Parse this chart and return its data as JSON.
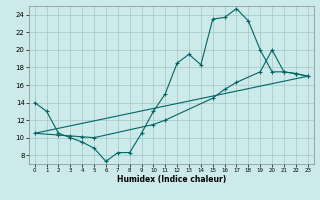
{
  "xlabel": "Humidex (Indice chaleur)",
  "bg_color": "#cceaea",
  "grid_color": "#aacccc",
  "line_color": "#006666",
  "xlim": [
    -0.5,
    23.5
  ],
  "ylim": [
    7,
    25
  ],
  "xticks": [
    0,
    1,
    2,
    3,
    4,
    5,
    6,
    7,
    8,
    9,
    10,
    11,
    12,
    13,
    14,
    15,
    16,
    17,
    18,
    19,
    20,
    21,
    22,
    23
  ],
  "yticks": [
    8,
    10,
    12,
    14,
    16,
    18,
    20,
    22,
    24
  ],
  "line1_x": [
    0,
    1,
    2,
    3,
    4,
    5,
    6,
    7,
    8,
    9,
    10,
    11,
    12,
    13,
    14,
    15,
    16,
    17,
    18,
    19,
    20,
    21,
    22,
    23
  ],
  "line1_y": [
    14.0,
    13.0,
    10.5,
    10.0,
    9.5,
    8.8,
    7.3,
    8.3,
    8.3,
    10.5,
    13.0,
    15.0,
    18.5,
    19.5,
    18.3,
    23.5,
    23.7,
    24.7,
    23.3,
    20.0,
    17.5,
    17.5,
    17.3,
    17.0
  ],
  "line2_x": [
    0,
    2,
    3,
    4,
    5,
    10,
    11,
    15,
    16,
    17,
    19,
    20,
    21,
    22,
    23
  ],
  "line2_y": [
    10.5,
    10.3,
    10.2,
    10.1,
    10.0,
    11.5,
    12.0,
    14.5,
    15.5,
    16.3,
    17.5,
    20.0,
    17.5,
    17.3,
    17.0
  ],
  "line3_x": [
    0,
    23
  ],
  "line3_y": [
    10.5,
    17.0
  ]
}
